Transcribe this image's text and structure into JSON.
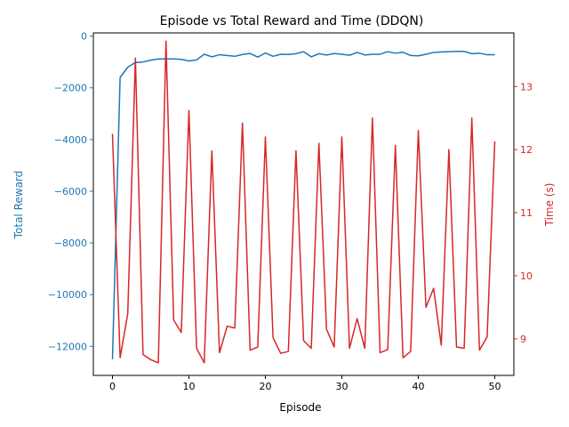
{
  "chart_data": {
    "type": "line",
    "title": "Episode vs Total Reward and Time (DDQN)",
    "xlabel": "Episode",
    "ylabel_left": "Total Reward",
    "ylabel_right": "Time (s)",
    "xlim": [
      -2.5,
      52.5
    ],
    "ylim_left": [
      -13125,
      125
    ],
    "ylim_right": [
      8.42,
      13.85
    ],
    "x_ticks": [
      0,
      10,
      20,
      30,
      40,
      50
    ],
    "y_left_ticks": [
      0,
      -2000,
      -4000,
      -6000,
      -8000,
      -10000,
      -12000
    ],
    "y_right_ticks": [
      9,
      10,
      11,
      12,
      13
    ],
    "grid": false,
    "legend": "none",
    "colors": {
      "left": "#1f77b4",
      "right": "#d62728"
    },
    "x": [
      0,
      1,
      2,
      3,
      4,
      5,
      6,
      7,
      8,
      9,
      10,
      11,
      12,
      13,
      14,
      15,
      16,
      17,
      18,
      19,
      20,
      21,
      22,
      23,
      24,
      25,
      26,
      27,
      28,
      29,
      30,
      31,
      32,
      33,
      34,
      35,
      36,
      37,
      38,
      39,
      40,
      41,
      42,
      43,
      44,
      45,
      46,
      47,
      48,
      49,
      50
    ],
    "series": [
      {
        "axis": "left",
        "color": "#1f77b4",
        "values": [
          -12500,
          -1600,
          -1200,
          -1020,
          -1000,
          -930,
          -880,
          -880,
          -880,
          -900,
          -960,
          -920,
          -700,
          -800,
          -720,
          -750,
          -780,
          -710,
          -670,
          -810,
          -650,
          -780,
          -700,
          -710,
          -680,
          -600,
          -800,
          -680,
          -730,
          -670,
          -700,
          -740,
          -630,
          -730,
          -700,
          -700,
          -600,
          -660,
          -620,
          -750,
          -760,
          -700,
          -630,
          -610,
          -600,
          -590,
          -590,
          -680,
          -660,
          -720,
          -720
        ]
      },
      {
        "axis": "right",
        "color": "#d62728",
        "values": [
          12.25,
          8.7,
          9.4,
          13.45,
          8.75,
          8.67,
          8.62,
          13.72,
          9.3,
          9.1,
          12.62,
          8.85,
          8.62,
          11.98,
          8.78,
          9.2,
          9.17,
          12.42,
          8.82,
          8.87,
          12.2,
          9.02,
          8.77,
          8.8,
          11.98,
          8.97,
          8.85,
          12.1,
          9.15,
          8.87,
          12.2,
          8.85,
          9.32,
          8.85,
          12.5,
          8.78,
          8.83,
          12.07,
          8.7,
          8.8,
          12.3,
          9.5,
          9.8,
          8.9,
          12.0,
          8.87,
          8.85,
          12.5,
          8.82,
          9.03,
          12.13
        ]
      }
    ]
  }
}
